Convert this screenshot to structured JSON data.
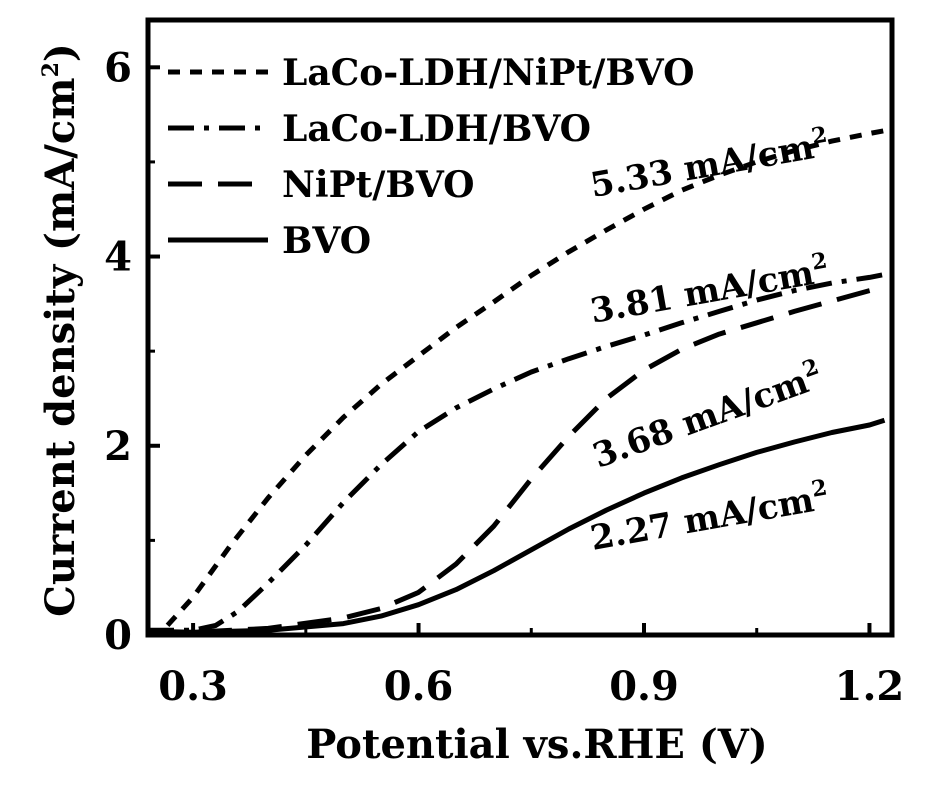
{
  "chart_data": {
    "type": "line",
    "xlabel": "Potential vs.RHE (V)",
    "ylabel": "Current density (mA/cm",
    "ylabel_sup": "2",
    "ylabel_close": ")",
    "xlim": [
      0.24,
      1.23
    ],
    "ylim": [
      0,
      6.5
    ],
    "x_ticks": [
      "0.3",
      "0.6",
      "0.9",
      "1.2"
    ],
    "y_ticks": [
      "0",
      "2",
      "4",
      "6"
    ],
    "grid": false,
    "legend_position": "top-left",
    "series": [
      {
        "name": "LaCo-LDH/NiPt/BVO",
        "style": "dotted-dash",
        "x": [
          0.24,
          0.26,
          0.3,
          0.35,
          0.4,
          0.45,
          0.5,
          0.55,
          0.6,
          0.65,
          0.7,
          0.75,
          0.8,
          0.85,
          0.9,
          0.95,
          1.0,
          1.05,
          1.1,
          1.15,
          1.2,
          1.22
        ],
        "y": [
          0.02,
          0.05,
          0.4,
          0.95,
          1.45,
          1.9,
          2.3,
          2.65,
          2.95,
          3.25,
          3.52,
          3.8,
          4.05,
          4.28,
          4.5,
          4.7,
          4.86,
          5.0,
          5.12,
          5.22,
          5.3,
          5.33
        ]
      },
      {
        "name": "LaCo-LDH/BVO",
        "style": "dash-dot",
        "x": [
          0.24,
          0.3,
          0.33,
          0.36,
          0.4,
          0.45,
          0.5,
          0.55,
          0.6,
          0.65,
          0.7,
          0.75,
          0.8,
          0.85,
          0.9,
          0.95,
          1.0,
          1.05,
          1.1,
          1.15,
          1.2,
          1.22
        ],
        "y": [
          0.05,
          0.05,
          0.1,
          0.25,
          0.55,
          0.95,
          1.4,
          1.8,
          2.15,
          2.4,
          2.6,
          2.78,
          2.92,
          3.05,
          3.17,
          3.3,
          3.42,
          3.54,
          3.64,
          3.72,
          3.78,
          3.81
        ]
      },
      {
        "name": "NiPt/BVO",
        "style": "long-dash",
        "x": [
          0.24,
          0.3,
          0.4,
          0.5,
          0.55,
          0.6,
          0.65,
          0.7,
          0.75,
          0.8,
          0.85,
          0.9,
          0.95,
          1.0,
          1.05,
          1.1,
          1.15,
          1.2,
          1.22
        ],
        "y": [
          0.03,
          0.03,
          0.07,
          0.18,
          0.28,
          0.45,
          0.75,
          1.15,
          1.65,
          2.1,
          2.5,
          2.8,
          3.02,
          3.18,
          3.3,
          3.42,
          3.53,
          3.64,
          3.68
        ]
      },
      {
        "name": "BVO",
        "style": "solid",
        "x": [
          0.24,
          0.3,
          0.4,
          0.5,
          0.55,
          0.6,
          0.65,
          0.7,
          0.75,
          0.8,
          0.85,
          0.9,
          0.95,
          1.0,
          1.05,
          1.1,
          1.15,
          1.2,
          1.22
        ],
        "y": [
          0.04,
          0.03,
          0.05,
          0.12,
          0.2,
          0.32,
          0.48,
          0.68,
          0.9,
          1.12,
          1.32,
          1.5,
          1.66,
          1.8,
          1.93,
          2.04,
          2.14,
          2.22,
          2.27
        ]
      }
    ],
    "annotations": [
      {
        "text": "5.33 mA/cm",
        "sup": "2",
        "x": 0.99,
        "y": 4.85,
        "angle": -10
      },
      {
        "text": "3.81 mA/cm",
        "sup": "2",
        "x": 0.99,
        "y": 3.52,
        "angle": -10
      },
      {
        "text": "3.68 mA/cm",
        "sup": "2",
        "x": 0.99,
        "y": 2.2,
        "angle": -20
      },
      {
        "text": "2.27 mA/cm",
        "sup": "2",
        "x": 0.99,
        "y": 1.12,
        "angle": -10
      }
    ]
  }
}
